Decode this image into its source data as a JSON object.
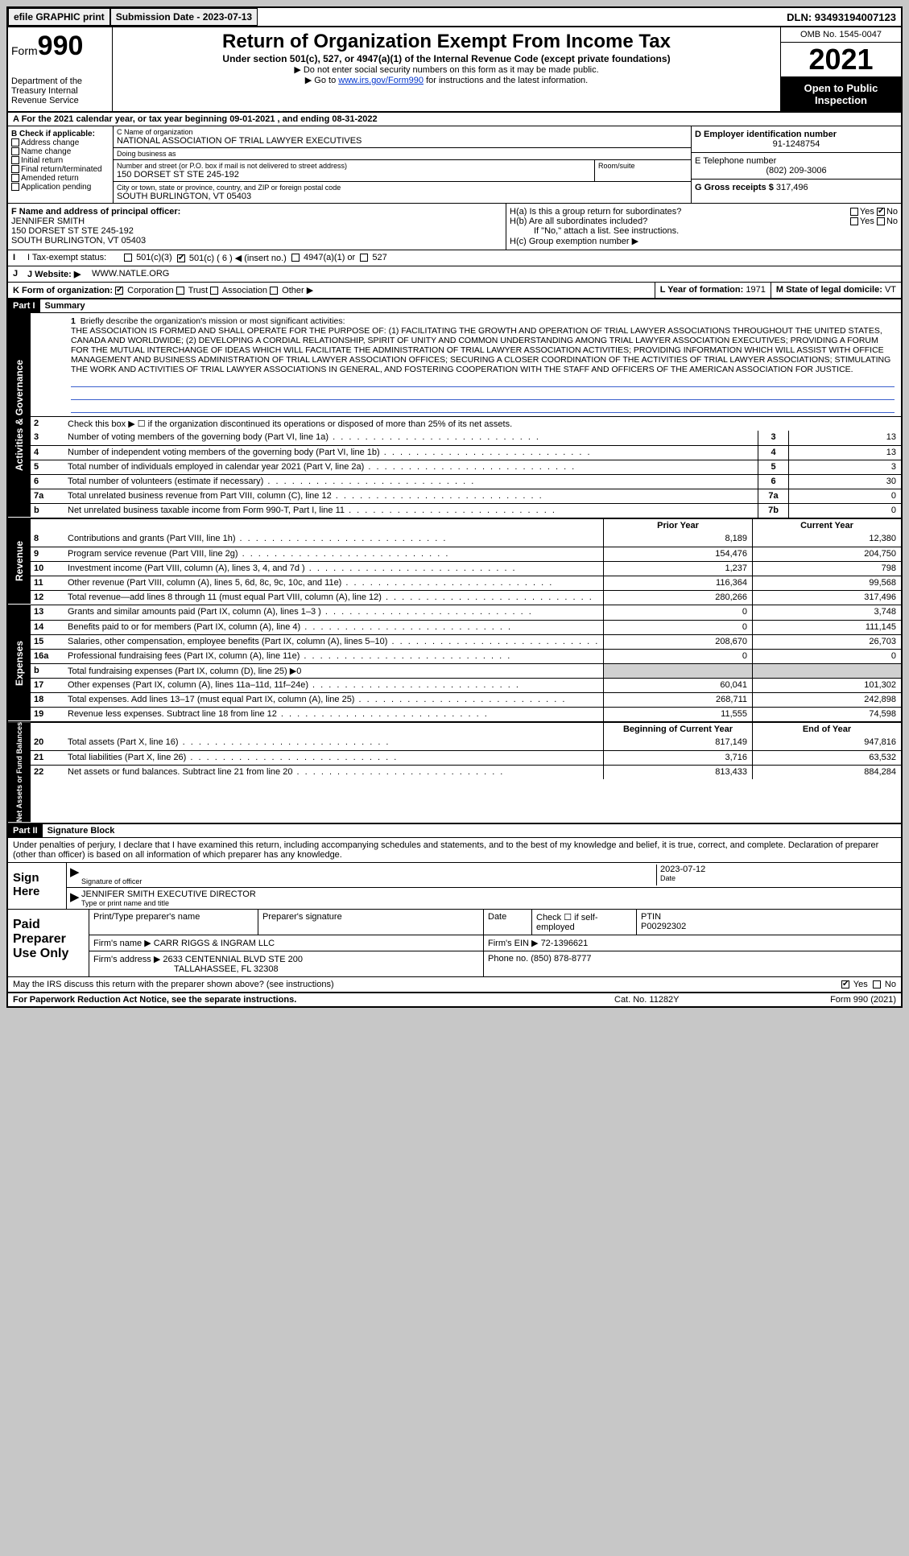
{
  "topbar": {
    "efile": "efile GRAPHIC print",
    "submission": "Submission Date - 2023-07-13",
    "dln": "DLN: 93493194007123"
  },
  "header": {
    "form": "Form",
    "form_no": "990",
    "dept": "Department of the Treasury Internal Revenue Service",
    "title": "Return of Organization Exempt From Income Tax",
    "subtitle": "Under section 501(c), 527, or 4947(a)(1) of the Internal Revenue Code (except private foundations)",
    "note1": "▶ Do not enter social security numbers on this form as it may be made public.",
    "note2_pre": "▶ Go to ",
    "note2_link": "www.irs.gov/Form990",
    "note2_post": " for instructions and the latest information.",
    "omb": "OMB No. 1545-0047",
    "year": "2021",
    "open": "Open to Public Inspection"
  },
  "rowA": "A For the 2021 calendar year, or tax year beginning 09-01-2021   , and ending 08-31-2022",
  "B": {
    "label": "B Check if applicable:",
    "items": [
      "Address change",
      "Name change",
      "Initial return",
      "Final return/terminated",
      "Amended return",
      "Application pending"
    ]
  },
  "C": {
    "name_label": "C Name of organization",
    "name": "NATIONAL ASSOCIATION OF TRIAL LAWYER EXECUTIVES",
    "dba_label": "Doing business as",
    "street_label": "Number and street (or P.O. box if mail is not delivered to street address)",
    "street": "150 DORSET ST STE 245-192",
    "suite_label": "Room/suite",
    "city_label": "City or town, state or province, country, and ZIP or foreign postal code",
    "city": "SOUTH BURLINGTON, VT  05403"
  },
  "D": {
    "label": "D Employer identification number",
    "val": "91-1248754"
  },
  "E": {
    "label": "E Telephone number",
    "val": "(802) 209-3006"
  },
  "G": {
    "label": "G Gross receipts $",
    "val": "317,496"
  },
  "F": {
    "label": "F  Name and address of principal officer:",
    "name": "JENNIFER SMITH",
    "addr1": "150 DORSET ST STE 245-192",
    "addr2": "SOUTH BURLINGTON, VT  05403"
  },
  "H": {
    "a": "H(a)  Is this a group return for subordinates?",
    "b": "H(b)  Are all subordinates included?",
    "b2": "If \"No,\" attach a list. See instructions.",
    "c": "H(c)  Group exemption number ▶"
  },
  "I": {
    "label": "I  Tax-exempt status:",
    "opts": [
      "501(c)(3)",
      "501(c) ( 6 ) ◀ (insert no.)",
      "4947(a)(1) or",
      "527"
    ]
  },
  "J": {
    "label": "J Website: ▶",
    "val": "WWW.NATLE.ORG"
  },
  "K": {
    "label": "K Form of organization:",
    "opts": [
      "Corporation",
      "Trust",
      "Association",
      "Other ▶"
    ]
  },
  "L": {
    "label": "L Year of formation:",
    "val": "1971"
  },
  "M": {
    "label": "M State of legal domicile:",
    "val": "VT"
  },
  "PartI": {
    "hdr": "Part I",
    "title": "Summary",
    "tab1": "Activities & Governance",
    "tab2": "Revenue",
    "tab3": "Expenses",
    "tab4": "Net Assets or Fund Balances",
    "l1_label": "Briefly describe the organization's mission or most significant activities:",
    "l1": "THE ASSOCIATION IS FORMED AND SHALL OPERATE FOR THE PURPOSE OF: (1) FACILITATING THE GROWTH AND OPERATION OF TRIAL LAWYER ASSOCIATIONS THROUGHOUT THE UNITED STATES, CANADA AND WORLDWIDE; (2) DEVELOPING A CORDIAL RELATIONSHIP, SPIRIT OF UNITY AND COMMON UNDERSTANDING AMONG TRIAL LAWYER ASSOCIATION EXECUTIVES; PROVIDING A FORUM FOR THE MUTUAL INTERCHANGE OF IDEAS WHICH WILL FACILITATE THE ADMINISTRATION OF TRIAL LAWYER ASSOCIATION ACTIVITIES; PROVIDING INFORMATION WHICH WILL ASSIST WITH OFFICE MANAGEMENT AND BUSINESS ADMINISTRATION OF TRIAL LAWYER ASSOCIATION OFFICES; SECURING A CLOSER COORDINATION OF THE ACTIVITIES OF TRIAL LAWYER ASSOCIATIONS; STIMULATING THE WORK AND ACTIVITIES OF TRIAL LAWYER ASSOCIATIONS IN GENERAL, AND FOSTERING COOPERATION WITH THE STAFF AND OFFICERS OF THE AMERICAN ASSOCIATION FOR JUSTICE.",
    "l2": "Check this box ▶ ☐  if the organization discontinued its operations or disposed of more than 25% of its net assets.",
    "rows_single": [
      {
        "n": "3",
        "d": "Number of voting members of the governing body (Part VI, line 1a)",
        "b": "3",
        "v": "13"
      },
      {
        "n": "4",
        "d": "Number of independent voting members of the governing body (Part VI, line 1b)",
        "b": "4",
        "v": "13"
      },
      {
        "n": "5",
        "d": "Total number of individuals employed in calendar year 2021 (Part V, line 2a)",
        "b": "5",
        "v": "3"
      },
      {
        "n": "6",
        "d": "Total number of volunteers (estimate if necessary)",
        "b": "6",
        "v": "30"
      },
      {
        "n": "7a",
        "d": "Total unrelated business revenue from Part VIII, column (C), line 12",
        "b": "7a",
        "v": "0"
      },
      {
        "n": "b",
        "d": "Net unrelated business taxable income from Form 990-T, Part I, line 11",
        "b": "7b",
        "v": "0"
      }
    ],
    "prior_hdr": "Prior Year",
    "curr_hdr": "Current Year",
    "rows_two": [
      {
        "n": "8",
        "d": "Contributions and grants (Part VIII, line 1h)",
        "p": "8,189",
        "c": "12,380"
      },
      {
        "n": "9",
        "d": "Program service revenue (Part VIII, line 2g)",
        "p": "154,476",
        "c": "204,750"
      },
      {
        "n": "10",
        "d": "Investment income (Part VIII, column (A), lines 3, 4, and 7d )",
        "p": "1,237",
        "c": "798"
      },
      {
        "n": "11",
        "d": "Other revenue (Part VIII, column (A), lines 5, 6d, 8c, 9c, 10c, and 11e)",
        "p": "116,364",
        "c": "99,568"
      },
      {
        "n": "12",
        "d": "Total revenue—add lines 8 through 11 (must equal Part VIII, column (A), line 12)",
        "p": "280,266",
        "c": "317,496"
      }
    ],
    "rows_exp": [
      {
        "n": "13",
        "d": "Grants and similar amounts paid (Part IX, column (A), lines 1–3 )",
        "p": "0",
        "c": "3,748"
      },
      {
        "n": "14",
        "d": "Benefits paid to or for members (Part IX, column (A), line 4)",
        "p": "0",
        "c": "111,145"
      },
      {
        "n": "15",
        "d": "Salaries, other compensation, employee benefits (Part IX, column (A), lines 5–10)",
        "p": "208,670",
        "c": "26,703"
      },
      {
        "n": "16a",
        "d": "Professional fundraising fees (Part IX, column (A), line 11e)",
        "p": "0",
        "c": "0"
      },
      {
        "n": "b",
        "d": "Total fundraising expenses (Part IX, column (D), line 25) ▶0",
        "p": "",
        "c": "",
        "grey": true
      },
      {
        "n": "17",
        "d": "Other expenses (Part IX, column (A), lines 11a–11d, 11f–24e)",
        "p": "60,041",
        "c": "101,302"
      },
      {
        "n": "18",
        "d": "Total expenses. Add lines 13–17 (must equal Part IX, column (A), line 25)",
        "p": "268,711",
        "c": "242,898"
      },
      {
        "n": "19",
        "d": "Revenue less expenses. Subtract line 18 from line 12",
        "p": "11,555",
        "c": "74,598"
      }
    ],
    "begin_hdr": "Beginning of Current Year",
    "end_hdr": "End of Year",
    "rows_net": [
      {
        "n": "20",
        "d": "Total assets (Part X, line 16)",
        "p": "817,149",
        "c": "947,816"
      },
      {
        "n": "21",
        "d": "Total liabilities (Part X, line 26)",
        "p": "3,716",
        "c": "63,532"
      },
      {
        "n": "22",
        "d": "Net assets or fund balances. Subtract line 21 from line 20",
        "p": "813,433",
        "c": "884,284"
      }
    ]
  },
  "PartII": {
    "hdr": "Part II",
    "title": "Signature Block",
    "perjury": "Under penalties of perjury, I declare that I have examined this return, including accompanying schedules and statements, and to the best of my knowledge and belief, it is true, correct, and complete. Declaration of preparer (other than officer) is based on all information of which preparer has any knowledge.",
    "sign": "Sign Here",
    "sig_officer": "Signature of officer",
    "date_label": "Date",
    "date": "2023-07-12",
    "officer": "JENNIFER SMITH  EXECUTIVE DIRECTOR",
    "type_label": "Type or print name and title",
    "paid": "Paid Preparer Use Only",
    "print_label": "Print/Type preparer's name",
    "prep_sig": "Preparer's signature",
    "check_self": "Check ☐ if self-employed",
    "ptin_label": "PTIN",
    "ptin": "P00292302",
    "firm_name_l": "Firm's name    ▶",
    "firm_name": "CARR RIGGS & INGRAM LLC",
    "firm_ein_l": "Firm's EIN ▶",
    "firm_ein": "72-1396621",
    "firm_addr_l": "Firm's address ▶",
    "firm_addr1": "2633 CENTENNIAL BLVD STE 200",
    "firm_addr2": "TALLAHASSEE, FL  32308",
    "phone_l": "Phone no.",
    "phone": "(850) 878-8777",
    "discuss": "May the IRS discuss this return with the preparer shown above? (see instructions)"
  },
  "footer": {
    "l": "For Paperwork Reduction Act Notice, see the separate instructions.",
    "m": "Cat. No. 11282Y",
    "r": "Form 990 (2021)"
  }
}
